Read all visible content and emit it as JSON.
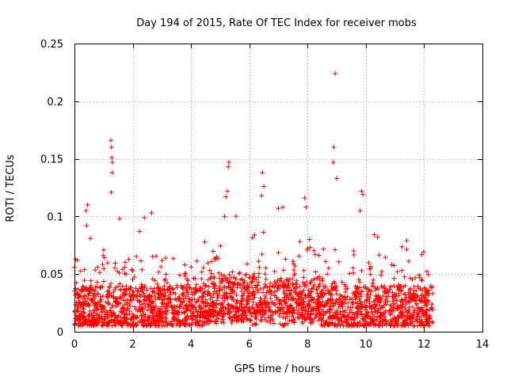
{
  "chart_data": {
    "type": "scatter",
    "title": "Day 194 of 2015, Rate Of TEC Index for receiver mobs",
    "xlabel": "GPS time / hours",
    "ylabel": "ROTI / TECUs",
    "xlim": [
      0,
      14
    ],
    "ylim": [
      0,
      0.25
    ],
    "x_ticks": [
      0,
      2,
      4,
      6,
      8,
      10,
      12,
      14
    ],
    "x_tick_labels": [
      "0",
      "2",
      "4",
      "6",
      "8",
      "10",
      "12",
      "14"
    ],
    "y_ticks": [
      0,
      0.05,
      0.1,
      0.15,
      0.2,
      0.25
    ],
    "y_tick_labels": [
      "0",
      "0.05",
      "0.1",
      "0.15",
      "0.2",
      "0.25"
    ],
    "grid": true,
    "marker": "+",
    "series": [
      {
        "name": "ROTI",
        "color": "#ff0000",
        "x_range": [
          0,
          12.3
        ],
        "typical_range": [
          0.005,
          0.04
        ],
        "notable_points": [
          {
            "x": 1.25,
            "y": 0.166
          },
          {
            "x": 1.27,
            "y": 0.16
          },
          {
            "x": 1.28,
            "y": 0.151
          },
          {
            "x": 1.3,
            "y": 0.147
          },
          {
            "x": 1.3,
            "y": 0.138
          },
          {
            "x": 1.26,
            "y": 0.121
          },
          {
            "x": 0.45,
            "y": 0.11
          },
          {
            "x": 0.4,
            "y": 0.105
          },
          {
            "x": 0.42,
            "y": 0.092
          },
          {
            "x": 5.3,
            "y": 0.147
          },
          {
            "x": 5.28,
            "y": 0.143
          },
          {
            "x": 5.25,
            "y": 0.122
          },
          {
            "x": 5.2,
            "y": 0.117
          },
          {
            "x": 5.15,
            "y": 0.1
          },
          {
            "x": 6.45,
            "y": 0.138
          },
          {
            "x": 6.5,
            "y": 0.126
          },
          {
            "x": 6.42,
            "y": 0.118
          },
          {
            "x": 7.9,
            "y": 0.116
          },
          {
            "x": 7.95,
            "y": 0.108
          },
          {
            "x": 8.95,
            "y": 0.224
          },
          {
            "x": 8.9,
            "y": 0.16
          },
          {
            "x": 8.88,
            "y": 0.147
          },
          {
            "x": 9.0,
            "y": 0.133
          },
          {
            "x": 9.85,
            "y": 0.122
          },
          {
            "x": 9.9,
            "y": 0.119
          },
          {
            "x": 9.8,
            "y": 0.105
          },
          {
            "x": 2.65,
            "y": 0.103
          },
          {
            "x": 2.4,
            "y": 0.099
          },
          {
            "x": 1.55,
            "y": 0.098
          },
          {
            "x": 7.15,
            "y": 0.108
          },
          {
            "x": 7.0,
            "y": 0.107
          },
          {
            "x": 0.1,
            "y": 0.062
          },
          {
            "x": 11.4,
            "y": 0.079
          },
          {
            "x": 10.4,
            "y": 0.082
          }
        ]
      }
    ]
  }
}
